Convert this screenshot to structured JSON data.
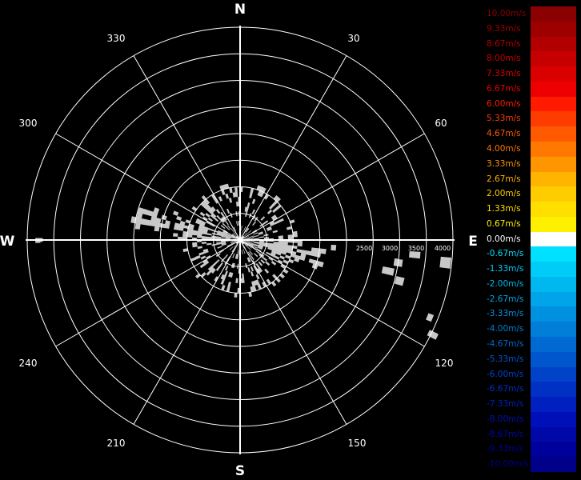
{
  "chart_data": {
    "type": "heatmap",
    "subtype": "polar-ppi",
    "title": "",
    "cardinal_labels": [
      "N",
      "E",
      "S",
      "W"
    ],
    "azimuth_labels": [
      "30",
      "60",
      "120",
      "150",
      "210",
      "240",
      "300",
      "330"
    ],
    "range_labels": [
      "2500",
      "3000",
      "3500",
      "4000"
    ],
    "range_rings_count": 8,
    "legend": {
      "placement": "right",
      "entries": [
        {
          "label": "10.00m/s",
          "color": "#8b0000"
        },
        {
          "label": "9.33m/s",
          "color": "#9e0000"
        },
        {
          "label": "8.67m/s",
          "color": "#b20000"
        },
        {
          "label": "8.00m/s",
          "color": "#c60000"
        },
        {
          "label": "7.33m/s",
          "color": "#da0000"
        },
        {
          "label": "6.67m/s",
          "color": "#ee0000"
        },
        {
          "label": "6.00m/s",
          "color": "#ff1a00"
        },
        {
          "label": "5.33m/s",
          "color": "#ff3c00"
        },
        {
          "label": "4.67m/s",
          "color": "#ff5a00"
        },
        {
          "label": "4.00m/s",
          "color": "#ff7800"
        },
        {
          "label": "3.33m/s",
          "color": "#ff9600"
        },
        {
          "label": "2.67m/s",
          "color": "#ffb400"
        },
        {
          "label": "2.00m/s",
          "color": "#ffcc00"
        },
        {
          "label": "1.33m/s",
          "color": "#ffdf00"
        },
        {
          "label": "0.67m/s",
          "color": "#fff000"
        },
        {
          "label": "0.00m/s",
          "color": "#ffffff"
        },
        {
          "label": "-0.67m/s",
          "color": "#00e0ff"
        },
        {
          "label": "-1.33m/s",
          "color": "#00ccf8"
        },
        {
          "label": "-2.00m/s",
          "color": "#00b8f0"
        },
        {
          "label": "-2.67m/s",
          "color": "#00a4e8"
        },
        {
          "label": "-3.33m/s",
          "color": "#0090e0"
        },
        {
          "label": "-4.00m/s",
          "color": "#007ed8"
        },
        {
          "label": "-4.67m/s",
          "color": "#006ad2"
        },
        {
          "label": "-5.33m/s",
          "color": "#0056cc"
        },
        {
          "label": "-6.00m/s",
          "color": "#0042c8"
        },
        {
          "label": "-6.67m/s",
          "color": "#0030c4"
        },
        {
          "label": "-7.33m/s",
          "color": "#0020c0"
        },
        {
          "label": "-8.00m/s",
          "color": "#0010b8"
        },
        {
          "label": "-8.67m/s",
          "color": "#0008a8"
        },
        {
          "label": "-9.33m/s",
          "color": "#00009a"
        },
        {
          "label": "-10.00m/s",
          "color": "#00008b"
        }
      ]
    },
    "grid": true,
    "background_color": "#000000",
    "grid_color": "#ffffff"
  }
}
